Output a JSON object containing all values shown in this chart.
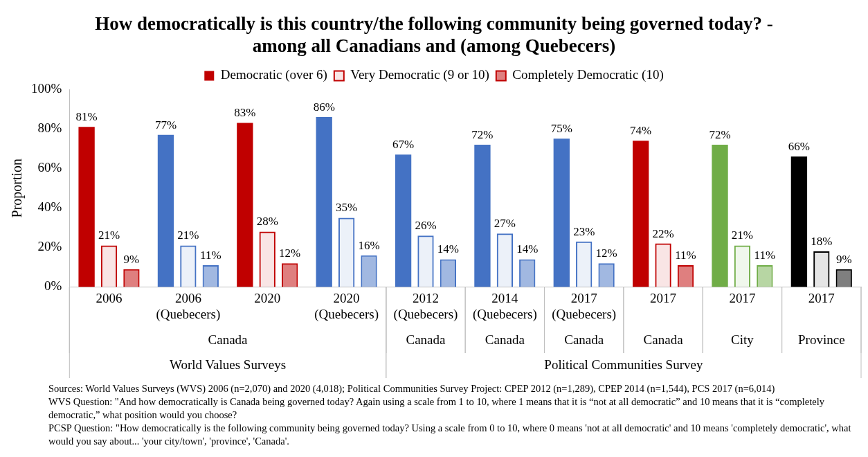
{
  "chart_data": {
    "type": "bar",
    "title": "How democratically is this country/the following community being governed today?  - among all Canadians and (among Quebecers)",
    "ylabel": "Proportion",
    "categories": [
      "2006",
      "2006\n(Quebecers)",
      "2020",
      "2020\n(Quebecers)",
      "2012\n(Quebecers)",
      "2014\n(Quebecers)",
      "2017\n(Quebecers)",
      "2017",
      "2017",
      "2017"
    ],
    "series": [
      {
        "name": "Democratic (over 6)",
        "color": "#c00000",
        "colors": [
          "#c00000",
          "#4472c4",
          "#c00000",
          "#4472c4",
          "#4472c4",
          "#4472c4",
          "#4472c4",
          "#c00000",
          "#70ad47",
          "#000000"
        ],
        "values": [
          81,
          77,
          83,
          86,
          67,
          72,
          75,
          74,
          72,
          66
        ],
        "value_labels": [
          "81%",
          "77%",
          "83%",
          "86%",
          "67%",
          "72%",
          "75%",
          "74%",
          "72%",
          "66%"
        ]
      },
      {
        "name": "Very Democratic (9 or 10)",
        "color": "#c00000",
        "colors": [
          "#c00000",
          "#4472c4",
          "#c00000",
          "#4472c4",
          "#4472c4",
          "#4472c4",
          "#4472c4",
          "#c00000",
          "#70ad47",
          "#000000"
        ],
        "values": [
          21,
          21,
          28,
          35,
          26,
          27,
          23,
          22,
          21,
          18
        ],
        "value_labels": [
          "21%",
          "21%",
          "28%",
          "35%",
          "26%",
          "27%",
          "23%",
          "22%",
          "21%",
          "18%"
        ]
      },
      {
        "name": "Completely Democratic (10)",
        "color": "#c00000",
        "colors": [
          "#c00000",
          "#4472c4",
          "#c00000",
          "#4472c4",
          "#4472c4",
          "#4472c4",
          "#4472c4",
          "#c00000",
          "#70ad47",
          "#000000"
        ],
        "values": [
          9,
          11,
          12,
          16,
          14,
          14,
          12,
          11,
          11,
          9
        ],
        "value_labels": [
          "9%",
          "11%",
          "12%",
          "16%",
          "14%",
          "14%",
          "12%",
          "11%",
          "11%",
          "9%"
        ]
      }
    ],
    "ylim": [
      0,
      100
    ],
    "yticks": [
      {
        "value": 0,
        "label": "0%"
      },
      {
        "value": 20,
        "label": "20%"
      },
      {
        "value": 40,
        "label": "40%"
      },
      {
        "value": 60,
        "label": "60%"
      },
      {
        "value": 80,
        "label": "80%"
      },
      {
        "value": 100,
        "label": "100%"
      }
    ],
    "grid": false,
    "legend": "top",
    "annotations": [
      "Canada",
      "Canada",
      "Canada",
      "Canada",
      "Canada",
      "City",
      "Province",
      "World Values Surveys",
      "Political Communities Survey",
      "Sources: World Values Surveys (WVS) 2006 (n=2,070) and 2020 (4,018); Political Communities Survey Project: CPEP 2012 (n=1,289), CPEP 2014 (n=1,544), PCS 2017 (n=6,014)",
      "WVS Question: \"And how democratically is Canada being governed today? Again using a scale from 1 to 10, where 1 means that it is “not at all democratic” and 10 means that it is “completely democratic,” what position would you choose?",
      "PCSP Question: \"How democratically is the following community being governed today? Using a scale from 0 to 10, where 0 means 'not at all democratic' and 10 means 'completely democratic', what would you say about... 'your city/town', 'province', 'Canada'."
    ]
  }
}
